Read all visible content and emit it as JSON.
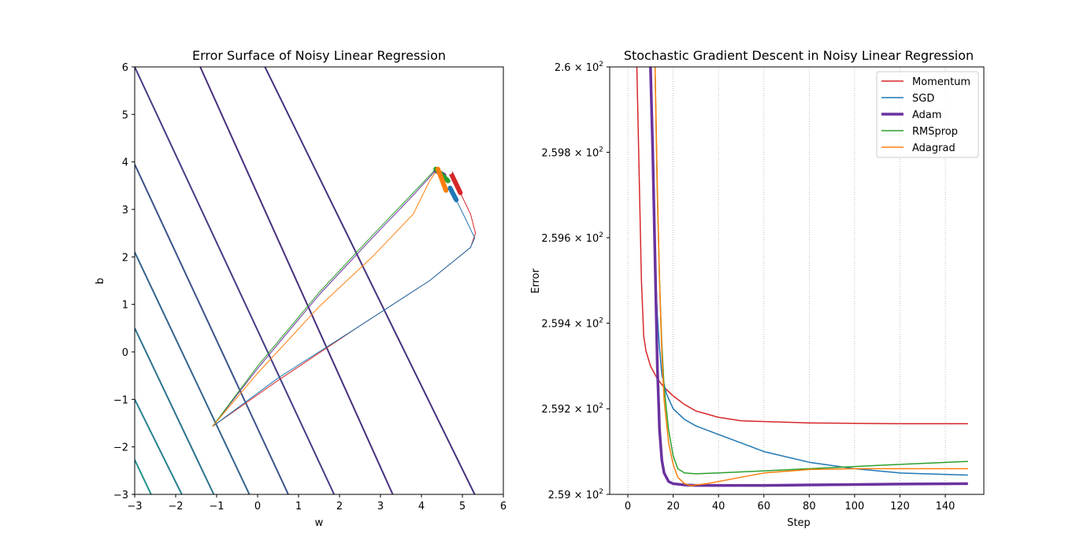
{
  "chart_data": [
    {
      "type": "line",
      "title": "Error Surface of Noisy Linear Regression",
      "xlabel": "w",
      "ylabel": "b",
      "xlim": [
        -3,
        6
      ],
      "ylim": [
        -3,
        6
      ],
      "xticks": [
        "−3",
        "−2",
        "−1",
        "0",
        "1",
        "2",
        "3",
        "4",
        "5",
        "6"
      ],
      "yticks": [
        "−3",
        "−2",
        "−1",
        "0",
        "1",
        "2",
        "3",
        "4",
        "5",
        "6"
      ],
      "grid": false,
      "contours": [
        {
          "color": "#21918c",
          "points": [
            [
              -3,
              -2.27
            ],
            [
              -2.6,
              -3
            ]
          ]
        },
        {
          "color": "#277f8e",
          "points": [
            [
              -3,
              -1.0
            ],
            [
              -1.85,
              -3
            ]
          ]
        },
        {
          "color": "#2c728e",
          "points": [
            [
              -3,
              0.5
            ],
            [
              -1.07,
              -3
            ]
          ]
        },
        {
          "color": "#33638d",
          "points": [
            [
              -3,
              2.1
            ],
            [
              -0.2,
              -3
            ]
          ]
        },
        {
          "color": "#3b528b",
          "points": [
            [
              -3,
              3.95
            ],
            [
              0.75,
              -3
            ]
          ]
        },
        {
          "color": "#433e85",
          "points": [
            [
              -3,
              6
            ],
            [
              1.87,
              -3
            ]
          ]
        },
        {
          "color": "#472f7d",
          "points": [
            [
              -1.4,
              6
            ],
            [
              3.3,
              -3
            ]
          ]
        },
        {
          "color": "#46327e",
          "points": [
            [
              0.18,
              6
            ],
            [
              5.3,
              -3
            ]
          ]
        }
      ],
      "series": [
        {
          "name": "Momentum",
          "color": "#d62728",
          "points": [
            [
              -1.1,
              -1.57
            ],
            [
              0.5,
              -0.6
            ],
            [
              2.5,
              0.55
            ],
            [
              4.2,
              1.5
            ],
            [
              5.2,
              2.2
            ],
            [
              5.32,
              2.5
            ],
            [
              5.2,
              2.9
            ],
            [
              4.95,
              3.35
            ],
            [
              4.7,
              3.8
            ]
          ]
        },
        {
          "name": "SGD",
          "color": "#1f77b4",
          "points": [
            [
              -1.1,
              -1.57
            ],
            [
              0.5,
              -0.55
            ],
            [
              2.5,
              0.55
            ],
            [
              4.2,
              1.5
            ],
            [
              5.2,
              2.2
            ],
            [
              5.3,
              2.4
            ],
            [
              5.05,
              2.85
            ],
            [
              4.85,
              3.2
            ],
            [
              4.7,
              3.45
            ]
          ]
        },
        {
          "name": "Adam",
          "color": "#6a329f",
          "points": [
            [
              -1.1,
              -1.57
            ],
            [
              0.0,
              -0.35
            ],
            [
              1.5,
              1.2
            ],
            [
              2.8,
              2.4
            ],
            [
              3.8,
              3.3
            ],
            [
              4.35,
              3.82
            ],
            [
              4.55,
              3.72
            ]
          ]
        },
        {
          "name": "RMSprop",
          "color": "#2ca02c",
          "points": [
            [
              -1.1,
              -1.57
            ],
            [
              0.0,
              -0.3
            ],
            [
              1.5,
              1.25
            ],
            [
              2.8,
              2.45
            ],
            [
              3.8,
              3.35
            ],
            [
              4.35,
              3.85
            ],
            [
              4.65,
              3.6
            ]
          ]
        },
        {
          "name": "Adagrad",
          "color": "#ff7f0e",
          "points": [
            [
              -1.1,
              -1.57
            ],
            [
              0.0,
              -0.45
            ],
            [
              1.5,
              0.95
            ],
            [
              2.8,
              2.0
            ],
            [
              3.8,
              2.9
            ],
            [
              4.2,
              3.6
            ],
            [
              4.4,
              3.85
            ],
            [
              4.6,
              3.4
            ]
          ]
        }
      ]
    },
    {
      "type": "line",
      "title": "Stochastic Gradient Descent in Noisy Linear Regression",
      "xlabel": "Step",
      "ylabel": "Error",
      "xlim": [
        -8,
        157
      ],
      "ylim": [
        259.0,
        260.0
      ],
      "xticks": [
        0,
        20,
        40,
        60,
        80,
        100,
        120,
        140
      ],
      "yticks": [
        {
          "value": 259.0,
          "mantissa": "2.59",
          "exponent": "2"
        },
        {
          "value": 259.2,
          "mantissa": "2.592",
          "exponent": "2"
        },
        {
          "value": 259.4,
          "mantissa": "2.594",
          "exponent": "2"
        },
        {
          "value": 259.6,
          "mantissa": "2.596",
          "exponent": "2"
        },
        {
          "value": 259.8,
          "mantissa": "2.598",
          "exponent": "2"
        },
        {
          "value": 260.0,
          "mantissa": "2.6",
          "exponent": "2"
        }
      ],
      "y_scale": "log",
      "grid": "vertical dotted",
      "legend_position": "upper-right",
      "series": [
        {
          "name": "Momentum",
          "color": "#d62728",
          "width": 1.5,
          "x": [
            4,
            5,
            6,
            7,
            8,
            10,
            13,
            16,
            20,
            25,
            30,
            40,
            50,
            60,
            80,
            100,
            120,
            150
          ],
          "y": [
            260.0,
            259.75,
            259.5,
            259.37,
            259.335,
            259.3,
            259.27,
            259.25,
            259.23,
            259.21,
            259.195,
            259.18,
            259.172,
            259.17,
            259.167,
            259.166,
            259.165,
            259.165
          ]
        },
        {
          "name": "SGD",
          "color": "#1f77b4",
          "width": 1.5,
          "x": [
            10,
            11,
            12,
            13,
            14,
            15,
            17,
            20,
            25,
            30,
            40,
            50,
            60,
            80,
            100,
            120,
            150
          ],
          "y": [
            260.0,
            259.75,
            259.55,
            259.42,
            259.34,
            259.28,
            259.235,
            259.2,
            259.175,
            259.16,
            259.14,
            259.12,
            259.1,
            259.075,
            259.06,
            259.05,
            259.045
          ]
        },
        {
          "name": "Adam",
          "color": "#6a329f",
          "width": 3.5,
          "x": [
            10,
            11,
            12,
            13,
            14,
            15,
            16,
            18,
            20,
            25,
            30,
            40,
            60,
            80,
            100,
            120,
            150
          ],
          "y": [
            260.0,
            259.8,
            259.55,
            259.3,
            259.15,
            259.08,
            259.05,
            259.03,
            259.025,
            259.022,
            259.021,
            259.021,
            259.021,
            259.022,
            259.023,
            259.024,
            259.025
          ]
        },
        {
          "name": "RMSprop",
          "color": "#2ca02c",
          "width": 1.5,
          "x": [
            12,
            13,
            14,
            15,
            16,
            18,
            20,
            22,
            25,
            30,
            40,
            60,
            80,
            100,
            120,
            150
          ],
          "y": [
            260.0,
            259.7,
            259.5,
            259.35,
            259.25,
            259.15,
            259.09,
            259.06,
            259.05,
            259.048,
            259.05,
            259.055,
            259.06,
            259.065,
            259.07,
            259.077
          ]
        },
        {
          "name": "Adagrad",
          "color": "#ff7f0e",
          "width": 1.5,
          "x": [
            12,
            13,
            14,
            15,
            16,
            18,
            20,
            22,
            25,
            28,
            30,
            35,
            40,
            50,
            60,
            80,
            100,
            120,
            150
          ],
          "y": [
            260.0,
            259.72,
            259.5,
            259.33,
            259.22,
            259.12,
            259.07,
            259.04,
            259.025,
            259.02,
            259.022,
            259.025,
            259.03,
            259.04,
            259.05,
            259.058,
            259.06,
            259.06,
            259.06
          ]
        }
      ]
    }
  ]
}
